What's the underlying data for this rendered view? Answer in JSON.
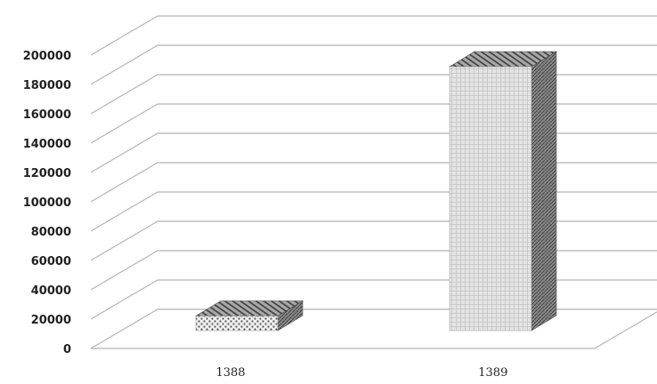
{
  "chart_data": {
    "type": "bar",
    "style": "3d-column",
    "categories": [
      "1388",
      "1389"
    ],
    "series": [
      {
        "values": [
          10000,
          180000
        ]
      }
    ],
    "ylim": [
      0,
      200000
    ],
    "yticks": [
      "0",
      "20000",
      "40000",
      "60000",
      "80000",
      "100000",
      "120000",
      "140000",
      "160000",
      "180000",
      "200000"
    ],
    "grid": true,
    "legend": "none",
    "colors": {
      "bar_1388_front": "#e6e6e6",
      "bar_1389_front": "#d9d9d9",
      "bar_side": "#8a8a8a",
      "bar_top": "#9a9a9a",
      "gridline": "#b5b5b5"
    }
  }
}
